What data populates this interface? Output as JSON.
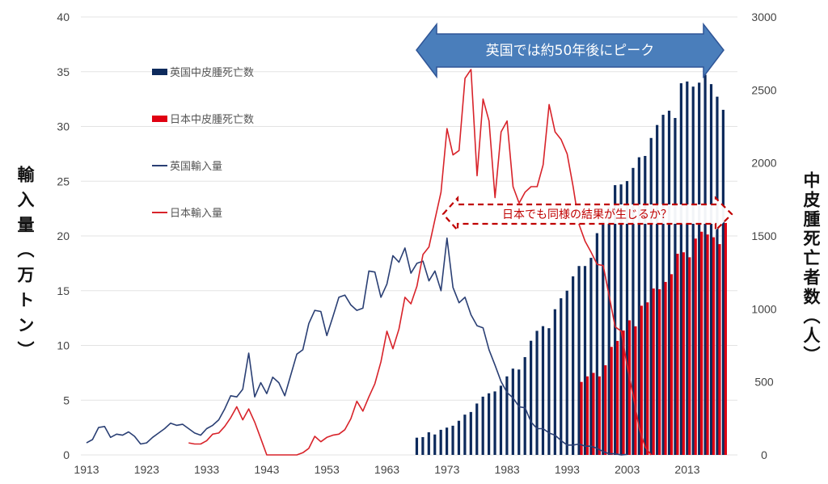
{
  "chart_data": {
    "type": "bar+line",
    "title": "",
    "left_axis": {
      "label": "輸入量（万トン）",
      "ylim": [
        0,
        40
      ],
      "ticks": [
        0,
        5,
        10,
        15,
        20,
        25,
        30,
        35,
        40
      ]
    },
    "right_axis": {
      "label": "中皮腫死亡者数（人）",
      "ylim": [
        0,
        3000
      ],
      "ticks": [
        0,
        500,
        1000,
        1500,
        2000,
        2500,
        3000
      ]
    },
    "x_axis": {
      "ticks": [
        1913,
        1923,
        1933,
        1943,
        1953,
        1963,
        1973,
        1983,
        1993,
        2003,
        2013
      ]
    },
    "grid": true,
    "legend_position": "top-left",
    "legend": [
      "英国中皮腫死亡数",
      "日本中皮腫死亡数",
      "英国輸入量",
      "日本輸入量"
    ],
    "colors": {
      "uk_bar": "#0d2a5c",
      "jp_bar": "#e00012",
      "uk_line": "#2a3f74",
      "jp_line": "#d8232a",
      "arrow": "#4a7ebb",
      "callout": "#c00000"
    },
    "annotations": {
      "top_arrow": "英国では約50年後にピーク",
      "callout": "日本でも同様の結果が生じるか？"
    },
    "series": [
      {
        "name": "英国中皮腫死亡数",
        "kind": "bar",
        "axis": "right",
        "start_year": 1968,
        "values": [
          118,
          122,
          155,
          140,
          172,
          187,
          200,
          234,
          276,
          294,
          352,
          399,
          422,
          435,
          474,
          538,
          591,
          585,
          670,
          782,
          850,
          882,
          868,
          998,
          1073,
          1125,
          1223,
          1294,
          1294,
          1350,
          1519,
          1600,
          1700,
          1848,
          1853,
          1876,
          1966,
          2039,
          2048,
          2171,
          2260,
          2330,
          2358,
          2308,
          2546,
          2558,
          2523,
          2550,
          2604,
          2540,
          2454,
          2364
        ]
      },
      {
        "name": "日本中皮腫死亡数",
        "kind": "bar",
        "axis": "right",
        "start_year": 1995,
        "values": [
          500,
          538,
          562,
          538,
          614,
          740,
          781,
          852,
          922,
          881,
          1022,
          1045,
          1140,
          1135,
          1185,
          1238,
          1378,
          1388,
          1354,
          1482,
          1529,
          1510,
          1491,
          1444,
          1589
        ]
      },
      {
        "name": "英国輸入量",
        "kind": "line",
        "axis": "left",
        "start_year": 1913,
        "values": [
          1.1,
          1.4,
          2.5,
          2.6,
          1.6,
          1.9,
          1.8,
          2.1,
          1.7,
          1.0,
          1.1,
          1.6,
          2.0,
          2.4,
          2.9,
          2.7,
          2.8,
          2.4,
          2.0,
          1.8,
          2.4,
          2.7,
          3.2,
          4.2,
          5.4,
          5.3,
          6.0,
          9.3,
          5.3,
          6.6,
          5.6,
          7.1,
          6.6,
          5.4,
          7.3,
          9.2,
          9.6,
          12.0,
          13.2,
          13.1,
          10.9,
          12.6,
          14.4,
          14.6,
          13.7,
          13.2,
          13.4,
          16.8,
          16.7,
          14.4,
          15.6,
          18.2,
          17.6,
          18.9,
          16.6,
          17.5,
          17.7,
          15.9,
          16.8,
          15.0,
          19.8,
          15.3,
          13.9,
          14.4,
          12.8,
          11.8,
          11.6,
          9.6,
          8.2,
          6.7,
          5.7,
          5.2,
          4.4,
          4.3,
          3.0,
          2.4,
          2.4,
          2.0,
          1.8,
          1.3,
          0.9,
          0.9,
          1.0,
          0.8,
          0.8,
          0.6,
          0.3,
          0.1,
          0.1,
          0.0,
          0.05
        ]
      },
      {
        "name": "日本輸入量",
        "kind": "line",
        "axis": "left",
        "start_year": 1930,
        "values": [
          1.1,
          1.0,
          1.0,
          1.3,
          1.9,
          2.0,
          2.6,
          3.4,
          4.4,
          3.2,
          4.2,
          3.0,
          1.5,
          0,
          0,
          0,
          0,
          0,
          0,
          0.2,
          0.6,
          1.7,
          1.2,
          1.6,
          1.8,
          1.9,
          2.3,
          3.3,
          4.9,
          4.0,
          5.3,
          6.5,
          8.5,
          11.3,
          9.7,
          11.5,
          14.4,
          13.8,
          15.4,
          18.3,
          19.0,
          21.5,
          24.0,
          29.8,
          27.4,
          27.8,
          34.4,
          35.2,
          25.5,
          32.5,
          30.5,
          23.5,
          29.5,
          30.5,
          24.5,
          23.0,
          24.0,
          24.5,
          24.5,
          26.5,
          32.0,
          29.5,
          28.8,
          27.5,
          24.5,
          21.0,
          19.5,
          18.5,
          17.4,
          17.3,
          14.5,
          11.7,
          11.3,
          8.1,
          5.4,
          2.4,
          0.7,
          0
        ]
      }
    ]
  }
}
